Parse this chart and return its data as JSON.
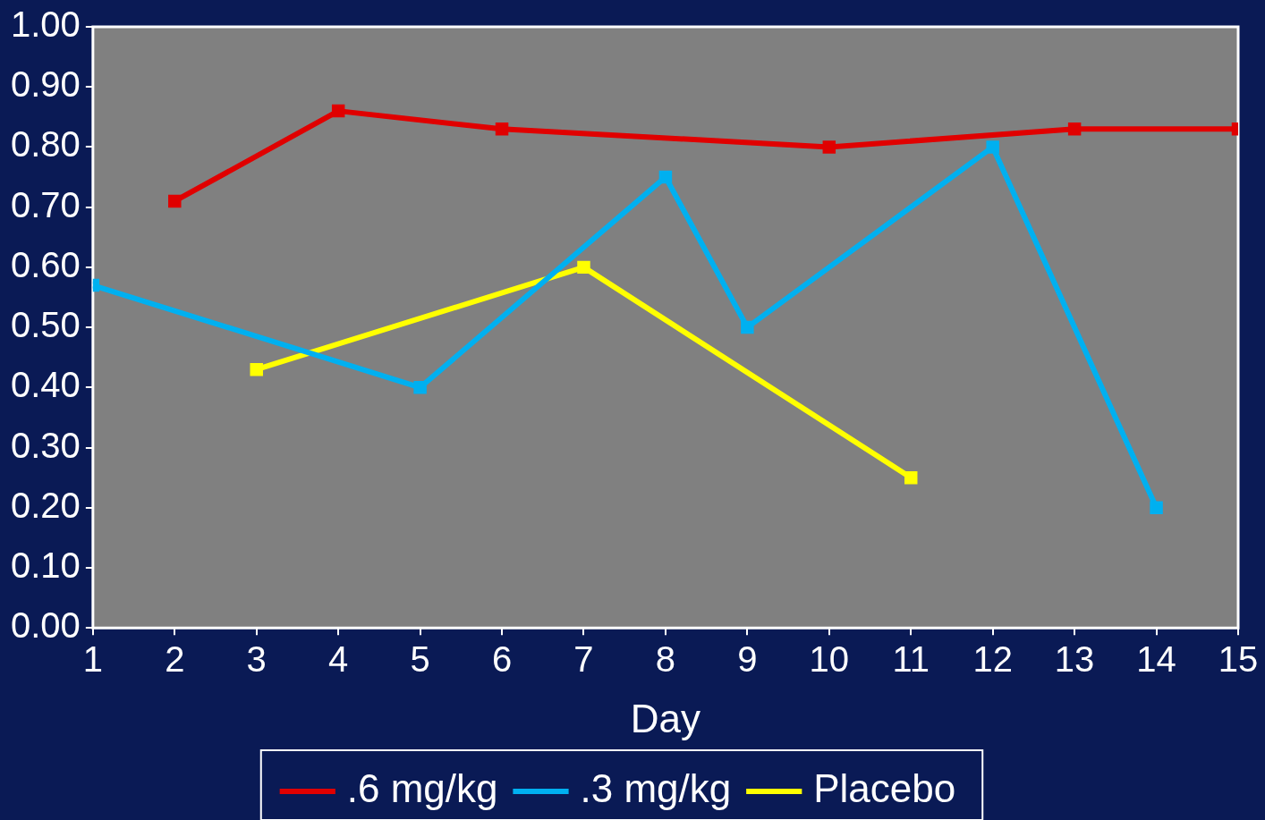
{
  "chart_data": {
    "type": "line",
    "xlabel": "Day",
    "xlim": [
      1,
      15
    ],
    "xticks": [
      1,
      2,
      3,
      4,
      5,
      6,
      7,
      8,
      9,
      10,
      11,
      12,
      13,
      14,
      15
    ],
    "ylim": [
      0,
      1
    ],
    "yticks": [
      {
        "value": 0,
        "label": "0.00"
      },
      {
        "value": 0.1,
        "label": "0.10"
      },
      {
        "value": 0.2,
        "label": "0.20"
      },
      {
        "value": 0.3,
        "label": "0.30"
      },
      {
        "value": 0.4,
        "label": "0.40"
      },
      {
        "value": 0.5,
        "label": "0.50"
      },
      {
        "value": 0.6,
        "label": "0.60"
      },
      {
        "value": 0.7,
        "label": "0.70"
      },
      {
        "value": 0.8,
        "label": "0.80"
      },
      {
        "value": 0.9,
        "label": "0.90"
      },
      {
        "value": 1,
        "label": "1.00"
      }
    ],
    "series": [
      {
        "name": ".6 mg/kg",
        "color": "#e00000",
        "x": [
          2,
          4,
          6,
          10,
          13,
          15
        ],
        "values": [
          0.71,
          0.86,
          0.83,
          0.8,
          0.83,
          0.83
        ]
      },
      {
        "name": ".3 mg/kg",
        "color": "#00b0f0",
        "x": [
          1,
          5,
          8,
          9,
          12,
          14
        ],
        "values": [
          0.57,
          0.4,
          0.75,
          0.5,
          0.8,
          0.2
        ]
      },
      {
        "name": "Placebo",
        "color": "#ffff00",
        "x": [
          3,
          7,
          11
        ],
        "values": [
          0.43,
          0.6,
          0.25
        ]
      }
    ],
    "marker": "square",
    "line_style": "solid",
    "grid": false,
    "legend": "bottom"
  }
}
